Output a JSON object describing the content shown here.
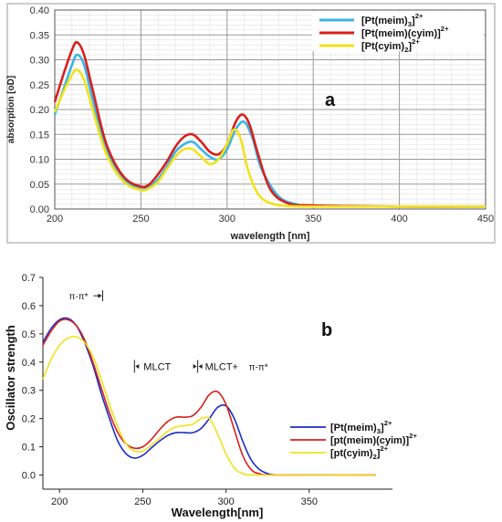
{
  "chart_data": [
    {
      "type": "line",
      "panel_label": "a",
      "xlabel": "wavelength [nm]",
      "ylabel": "absorption [oD]",
      "xlim": [
        200,
        450
      ],
      "ylim": [
        0,
        0.4
      ],
      "x_ticks": [
        "200",
        "250",
        "300",
        "350",
        "400",
        "450"
      ],
      "y_ticks": [
        "0.00",
        "0.05",
        "0.10",
        "0.15",
        "0.20",
        "0.25",
        "0.30",
        "0.35",
        "0.40"
      ],
      "grid": true,
      "legend_position": "top-right",
      "series": [
        {
          "name_main": "[Pt(meim)",
          "name_sub": "3",
          "name_end": "]",
          "name_sup": "2+",
          "color": "#3cb4e6",
          "x": [
            200,
            205,
            210,
            213,
            217,
            222,
            230,
            240,
            250,
            255,
            260,
            265,
            270,
            275,
            280,
            285,
            290,
            295,
            300,
            305,
            310,
            315,
            320,
            330,
            340,
            350,
            400,
            450
          ],
          "y": [
            0.19,
            0.24,
            0.29,
            0.31,
            0.29,
            0.22,
            0.12,
            0.06,
            0.04,
            0.045,
            0.06,
            0.085,
            0.115,
            0.13,
            0.135,
            0.12,
            0.105,
            0.1,
            0.12,
            0.16,
            0.175,
            0.14,
            0.08,
            0.025,
            0.01,
            0.006,
            0.005,
            0.005
          ]
        },
        {
          "name_main": "[Pt(meim)(cyim)]",
          "name_sub": "",
          "name_end": "",
          "name_sup": "2+",
          "color": "#d8201c",
          "x": [
            200,
            205,
            210,
            213,
            217,
            222,
            230,
            240,
            250,
            255,
            260,
            265,
            270,
            275,
            280,
            285,
            290,
            295,
            300,
            305,
            309,
            313,
            318,
            325,
            335,
            350,
            400,
            450
          ],
          "y": [
            0.215,
            0.27,
            0.32,
            0.335,
            0.31,
            0.24,
            0.13,
            0.065,
            0.045,
            0.05,
            0.07,
            0.095,
            0.125,
            0.145,
            0.15,
            0.135,
            0.115,
            0.11,
            0.13,
            0.175,
            0.19,
            0.17,
            0.11,
            0.04,
            0.012,
            0.007,
            0.005,
            0.005
          ]
        },
        {
          "name_main": "[Pt(cyim)",
          "name_sub": "2",
          "name_end": "]",
          "name_sup": "2+",
          "color": "#f2e21a",
          "x": [
            200,
            205,
            210,
            213,
            217,
            222,
            230,
            240,
            250,
            255,
            260,
            265,
            270,
            275,
            280,
            285,
            290,
            295,
            300,
            304,
            308,
            312,
            318,
            325,
            335,
            350,
            400,
            450
          ],
          "y": [
            0.195,
            0.235,
            0.27,
            0.28,
            0.26,
            0.2,
            0.11,
            0.055,
            0.038,
            0.042,
            0.055,
            0.08,
            0.105,
            0.12,
            0.12,
            0.105,
            0.09,
            0.1,
            0.13,
            0.16,
            0.14,
            0.08,
            0.03,
            0.012,
            0.006,
            0.005,
            0.005,
            0.005
          ]
        }
      ]
    },
    {
      "type": "line",
      "panel_label": "b",
      "xlabel": "Wavelength[nm]",
      "ylabel": "Oscillator strength",
      "xlim": [
        190,
        400
      ],
      "ylim": [
        -0.05,
        0.7
      ],
      "x_ticks": [
        "200",
        "250",
        "300",
        "350"
      ],
      "y_ticks": [
        "0.0",
        "0.1",
        "0.2",
        "0.3",
        "0.4",
        "0.5",
        "0.6",
        "0.7"
      ],
      "grid": false,
      "legend_position": "bottom-right",
      "annotations": [
        {
          "text": "π-π*",
          "x": 210,
          "y": 0.635
        },
        {
          "text": "MLCT",
          "x": 262,
          "y": 0.385
        },
        {
          "text": "MLCT+",
          "x": 300,
          "y": 0.385
        },
        {
          "text": "π-π*",
          "x": 318,
          "y": 0.385
        }
      ],
      "series": [
        {
          "name_main": "[Pt(meim)",
          "name_sub": "3",
          "name_end": "]",
          "name_sup": "2+",
          "color": "#1a2fc4",
          "x": [
            190,
            195,
            200,
            205,
            210,
            215,
            220,
            225,
            230,
            235,
            240,
            245,
            250,
            255,
            260,
            265,
            270,
            275,
            280,
            285,
            290,
            295,
            300,
            305,
            310,
            315,
            320,
            325,
            330,
            340,
            390
          ],
          "y": [
            0.47,
            0.52,
            0.55,
            0.555,
            0.53,
            0.47,
            0.39,
            0.29,
            0.2,
            0.12,
            0.075,
            0.06,
            0.07,
            0.095,
            0.12,
            0.14,
            0.15,
            0.15,
            0.15,
            0.165,
            0.2,
            0.24,
            0.245,
            0.2,
            0.12,
            0.055,
            0.02,
            0.005,
            0.0,
            0.0,
            0.0
          ]
        },
        {
          "name_main": "[pt(meim)(cyim)]",
          "name_sub": "",
          "name_end": "",
          "name_sup": "2+",
          "color": "#d8201c",
          "x": [
            190,
            195,
            200,
            205,
            210,
            215,
            220,
            225,
            230,
            235,
            240,
            245,
            250,
            255,
            260,
            265,
            270,
            275,
            280,
            285,
            290,
            295,
            300,
            305,
            310,
            315,
            320,
            330,
            390
          ],
          "y": [
            0.46,
            0.51,
            0.545,
            0.55,
            0.53,
            0.48,
            0.4,
            0.31,
            0.22,
            0.15,
            0.11,
            0.095,
            0.1,
            0.125,
            0.16,
            0.19,
            0.205,
            0.205,
            0.21,
            0.24,
            0.285,
            0.295,
            0.25,
            0.16,
            0.07,
            0.02,
            0.005,
            0.0,
            0.0
          ]
        },
        {
          "name_main": "[pt(cyim)",
          "name_sub": "2",
          "name_end": "]",
          "name_sup": "2+",
          "color": "#f2e21a",
          "x": [
            190,
            195,
            200,
            205,
            210,
            215,
            220,
            225,
            230,
            235,
            240,
            245,
            250,
            255,
            260,
            265,
            270,
            275,
            280,
            285,
            290,
            295,
            300,
            305,
            310,
            320,
            390
          ],
          "y": [
            0.34,
            0.41,
            0.46,
            0.485,
            0.49,
            0.47,
            0.42,
            0.34,
            0.25,
            0.17,
            0.11,
            0.085,
            0.085,
            0.105,
            0.13,
            0.155,
            0.17,
            0.175,
            0.18,
            0.2,
            0.2,
            0.145,
            0.075,
            0.025,
            0.006,
            0.0,
            0.0
          ]
        }
      ]
    }
  ]
}
